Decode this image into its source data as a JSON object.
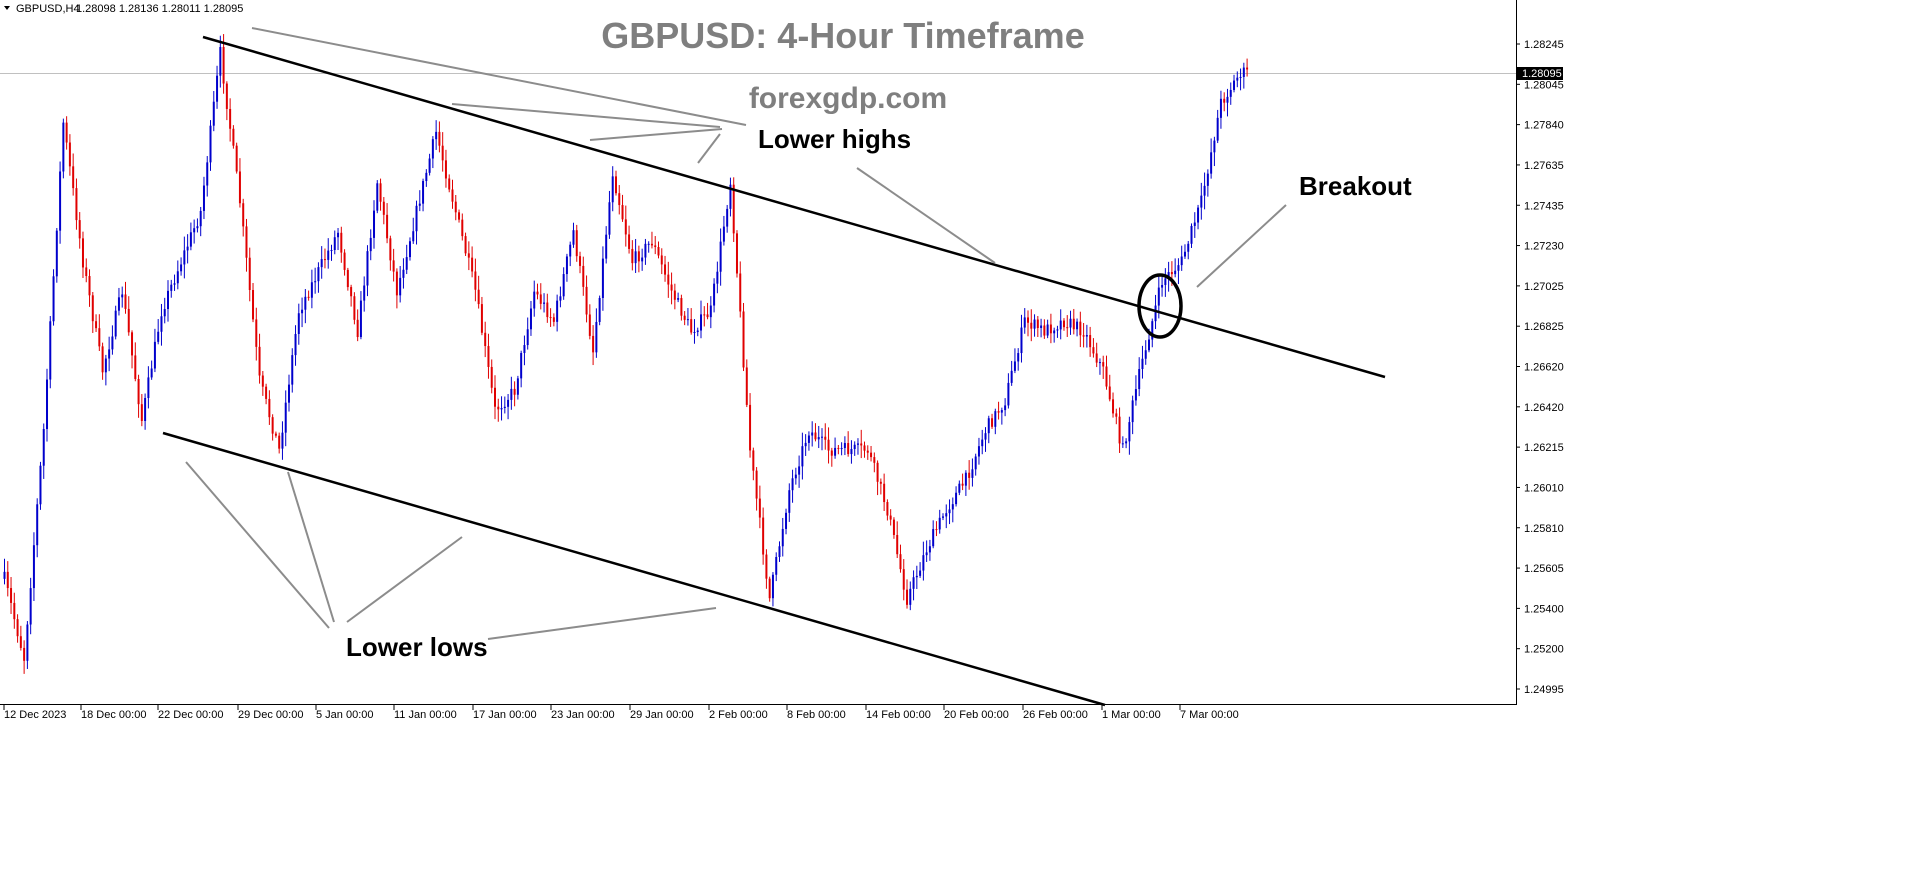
{
  "header": {
    "symbol": "GBPUSD,H4",
    "ohlc": "1.28098 1.28136 1.28011 1.28095"
  },
  "title": "GBPUSD: 4-Hour Timeframe",
  "watermark": "forexgdp.com",
  "annotations": {
    "lower_highs": "Lower highs",
    "lower_lows": "Lower lows",
    "breakout": "Breakout"
  },
  "colors": {
    "bull": "#0000cc",
    "bear": "#e00000",
    "trendline": "#000000",
    "pointer": "#8c8c8c",
    "current_price_line": "#c0c0c0"
  },
  "chart_data": {
    "type": "candlestick",
    "title": "GBPUSD: 4-Hour Timeframe",
    "x_ticks": [
      "12 Dec 2023",
      "18 Dec 00:00",
      "22 Dec 00:00",
      "29 Dec 00:00",
      "5 Jan 00:00",
      "11 Jan 00:00",
      "17 Jan 00:00",
      "23 Jan 00:00",
      "29 Jan 00:00",
      "2 Feb 00:00",
      "8 Feb 00:00",
      "14 Feb 00:00",
      "20 Feb 00:00",
      "26 Feb 00:00",
      "1 Mar 00:00",
      "7 Mar 00:00"
    ],
    "y_ticks": [
      "1.28245",
      "1.28045",
      "1.27840",
      "1.27635",
      "1.27435",
      "1.27230",
      "1.27025",
      "1.26825",
      "1.26620",
      "1.26420",
      "1.26215",
      "1.26010",
      "1.25810",
      "1.25605",
      "1.25400",
      "1.25200",
      "1.24995"
    ],
    "ylim": [
      1.2494,
      1.2832
    ],
    "current_price": "1.28095",
    "swing_path": [
      [
        "12 Dec 2023",
        1.2555
      ],
      [
        "13 Dec",
        1.2515
      ],
      [
        "14 Dec",
        1.263
      ],
      [
        "15 Dec",
        1.2785
      ],
      [
        "18 Dec",
        1.2715
      ],
      [
        "19 Dec",
        1.266
      ],
      [
        "20 Dec",
        1.27
      ],
      [
        "21 Dec",
        1.2635
      ],
      [
        "22 Dec",
        1.269
      ],
      [
        "26 Dec",
        1.274
      ],
      [
        "27 Dec",
        1.282
      ],
      [
        "28 Dec",
        1.2745
      ],
      [
        "29 Dec",
        1.2655
      ],
      [
        "1 Jan",
        1.262
      ],
      [
        "2 Jan",
        1.269
      ],
      [
        "4 Jan",
        1.273
      ],
      [
        "5 Jan",
        1.268
      ],
      [
        "8 Jan",
        1.2755
      ],
      [
        "9 Jan",
        1.27
      ],
      [
        "10 Jan",
        1.274
      ],
      [
        "11 Jan",
        1.278
      ],
      [
        "12 Jan",
        1.274
      ],
      [
        "15 Jan",
        1.27
      ],
      [
        "16 Jan",
        1.264
      ],
      [
        "17 Jan",
        1.265
      ],
      [
        "18 Jan",
        1.27
      ],
      [
        "19 Jan",
        1.2685
      ],
      [
        "22 Jan",
        1.273
      ],
      [
        "23 Jan",
        1.267
      ],
      [
        "24 Jan",
        1.276
      ],
      [
        "25 Jan",
        1.2715
      ],
      [
        "26 Jan",
        1.2725
      ],
      [
        "29 Jan",
        1.27
      ],
      [
        "30 Jan",
        1.268
      ],
      [
        "31 Jan",
        1.269
      ],
      [
        "1 Feb",
        1.2755
      ],
      [
        "2 Feb",
        1.262
      ],
      [
        "5 Feb",
        1.2545
      ],
      [
        "6 Feb",
        1.26
      ],
      [
        "7 Feb",
        1.263
      ],
      [
        "8 Feb",
        1.262
      ],
      [
        "9 Feb",
        1.262
      ],
      [
        "12 Feb",
        1.262
      ],
      [
        "13 Feb",
        1.259
      ],
      [
        "14 Feb",
        1.2545
      ],
      [
        "15 Feb",
        1.257
      ],
      [
        "16 Feb",
        1.259
      ],
      [
        "19 Feb",
        1.2605
      ],
      [
        "20 Feb",
        1.263
      ],
      [
        "21 Feb",
        1.2645
      ],
      [
        "22 Feb",
        1.2685
      ],
      [
        "23 Feb",
        1.268
      ],
      [
        "26 Feb",
        1.2685
      ],
      [
        "27 Feb",
        1.268
      ],
      [
        "28 Feb",
        1.266
      ],
      [
        "29 Feb",
        1.262
      ],
      [
        "1 Mar",
        1.2665
      ],
      [
        "4 Mar",
        1.2705
      ],
      [
        "5 Mar",
        1.2715
      ],
      [
        "6 Mar",
        1.2745
      ],
      [
        "7 Mar",
        1.2795
      ],
      [
        "8 Mar",
        1.281
      ]
    ],
    "trendlines": {
      "upper": [
        [
          "21 Dec",
          1.2827
        ],
        [
          "13 Mar",
          1.266
        ]
      ],
      "lower": [
        [
          "20 Dec",
          1.2628
        ],
        [
          "4 Mar",
          1.2495
        ]
      ]
    }
  }
}
